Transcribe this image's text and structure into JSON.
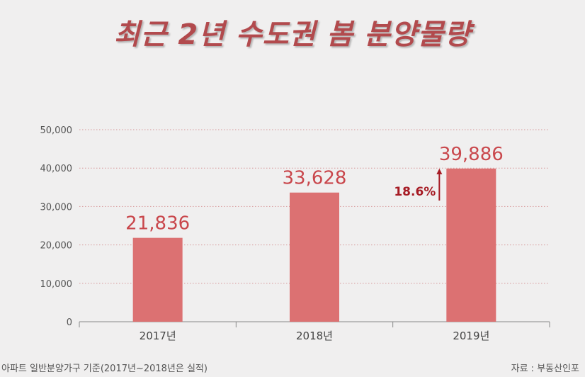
{
  "title": "최근 2년 수도권 봄 분양물량",
  "footnote": "아파트 일반분양가구 기준(2017년~2018년은 실적)",
  "source": "자료 : 부동산인포",
  "colors": {
    "bar": "#dc7172",
    "title": "#b24a4d",
    "value_label": "#c9474c",
    "growth": "#a61b24",
    "grid": "#d69799"
  },
  "chart_data": {
    "type": "bar",
    "categories": [
      "2017년",
      "2018년",
      "2019년"
    ],
    "values": [
      21836,
      33628,
      39886
    ],
    "value_labels": [
      "21,836",
      "33,628",
      "39,886"
    ],
    "yticks": [
      "0",
      "10,000",
      "20,000",
      "30,000",
      "40,000",
      "50,000"
    ],
    "ylim": [
      0,
      50000
    ],
    "grid": true,
    "annotation": {
      "text": "18.6%",
      "category": "2019년"
    }
  }
}
